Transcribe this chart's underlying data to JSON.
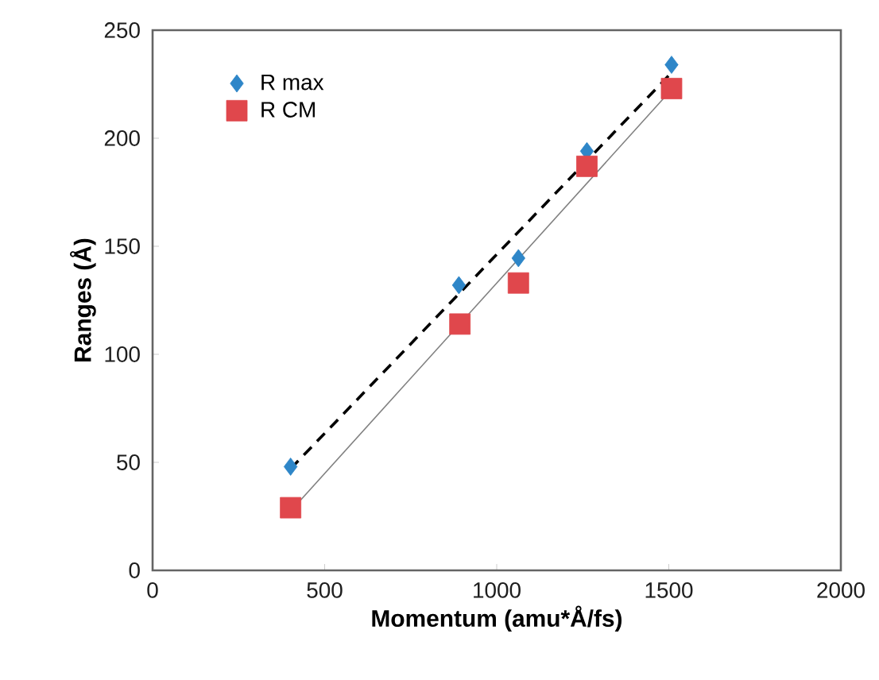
{
  "chart_data": {
    "type": "scatter",
    "xlabel": "Momentum (amu*Å/fs)",
    "ylabel": "Ranges (Å)",
    "xlim": [
      0,
      2000
    ],
    "xticks": [
      0,
      500,
      1000,
      1500,
      2000
    ],
    "ylim": [
      0,
      250
    ],
    "yticks": [
      0,
      50,
      100,
      150,
      200,
      250
    ],
    "legend": "top left",
    "grid": false,
    "series": [
      {
        "name": "R max",
        "marker": "diamond",
        "color": "#2e86c8",
        "x": [
          401,
          890,
          1063,
          1262,
          1508
        ],
        "values": [
          48,
          132,
          144.5,
          194,
          234
        ]
      },
      {
        "name": "R CM",
        "marker": "square",
        "color": "#e0474c",
        "x": [
          401,
          893,
          1063,
          1262,
          1508
        ],
        "values": [
          29,
          114,
          133,
          187,
          223
        ]
      },
      {
        "type": "line",
        "marker": "none",
        "line_style": "dashed",
        "color": "#000000",
        "x": [
          401,
          1512
        ],
        "values": [
          47,
          231
        ]
      },
      {
        "type": "line",
        "marker": "none",
        "line_style": "solid",
        "color": "#808080",
        "x": [
          401,
          1508
        ],
        "values": [
          27.4,
          222.5
        ]
      }
    ]
  }
}
